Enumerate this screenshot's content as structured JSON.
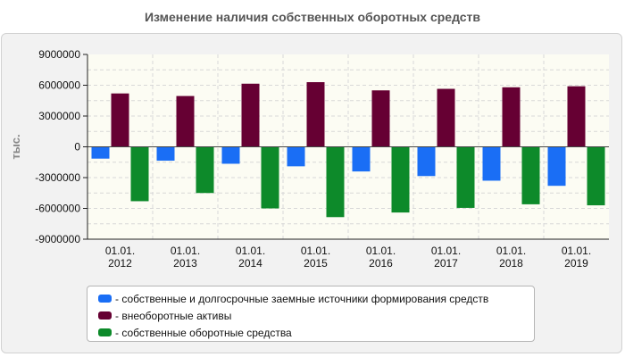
{
  "chart_data": {
    "type": "bar",
    "title": "Изменение наличия собственных оборотных средств",
    "ylabel": "тыс.",
    "xlabel": "",
    "categories": [
      [
        "01.01.",
        "2012"
      ],
      [
        "01.01.",
        "2013"
      ],
      [
        "01.01.",
        "2014"
      ],
      [
        "01.01.",
        "2015"
      ],
      [
        "01.01.",
        "2016"
      ],
      [
        "01.01.",
        "2017"
      ],
      [
        "01.01.",
        "2018"
      ],
      [
        "01.01.",
        "2019"
      ]
    ],
    "ylim": [
      -9000000,
      9000000
    ],
    "yticks": [
      9000000,
      6000000,
      3000000,
      0,
      -3000000,
      -6000000,
      -9000000
    ],
    "ytick_labels": [
      "9000000",
      "6000000",
      "3000000",
      "0",
      "-3000000",
      "-6000000",
      "-9000000"
    ],
    "grid": true,
    "legend_position": "bottom",
    "series": [
      {
        "name": "собственные и долгосрочные заемные источники формирования средств",
        "label": "- собственные и долгосрочные заемные источники формирования средств",
        "color": "#1a6ef5",
        "values": [
          -1150000,
          -1350000,
          -1650000,
          -1900000,
          -2400000,
          -2850000,
          -3300000,
          -3800000
        ]
      },
      {
        "name": "внеоборотные активы",
        "label": "- внеоборотные активы",
        "color": "#660033",
        "values": [
          5200000,
          4950000,
          6150000,
          6300000,
          5500000,
          5650000,
          5800000,
          5900000
        ]
      },
      {
        "name": "собственные оборотные средства",
        "label": "- собственные оборотные средства",
        "color": "#0d8a2a",
        "values": [
          -5300000,
          -4500000,
          -6000000,
          -6850000,
          -6400000,
          -5950000,
          -5600000,
          -5700000
        ]
      }
    ]
  }
}
